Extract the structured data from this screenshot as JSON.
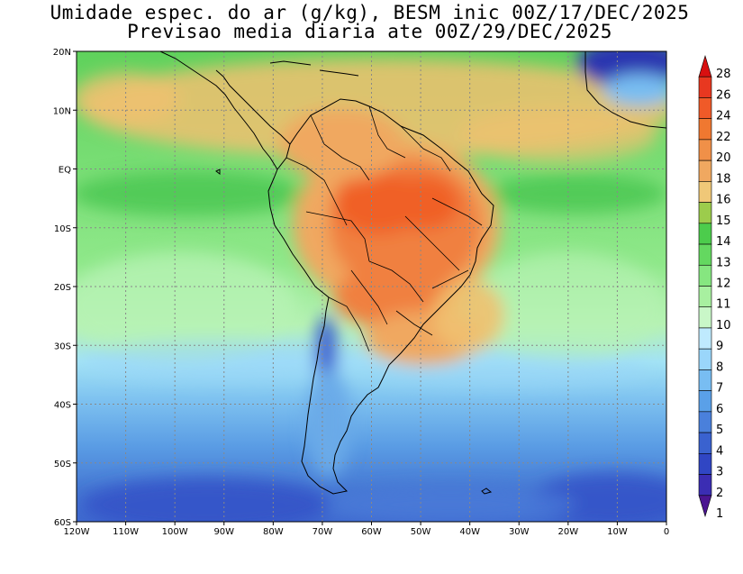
{
  "title_line1": "Umidade espec. do ar (g/kg), BESM inic 00Z/17/DEC/2025",
  "title_line2": "Previsao media diaria ate 00Z/29/DEC/2025",
  "axes": {
    "lon_labels": [
      "120W",
      "110W",
      "100W",
      "90W",
      "80W",
      "70W",
      "60W",
      "50W",
      "40W",
      "30W",
      "20W",
      "10W",
      "0"
    ],
    "lat_labels": [
      "20N",
      "10N",
      "EQ",
      "10S",
      "20S",
      "30S",
      "40S",
      "50S",
      "60S"
    ],
    "lon_range": [
      -120,
      0
    ],
    "lat_range": [
      -60,
      20
    ],
    "grid": "dotted"
  },
  "colorbar": {
    "levels": [
      "1",
      "2",
      "3",
      "4",
      "5",
      "6",
      "7",
      "8",
      "9",
      "10",
      "11",
      "12",
      "13",
      "14",
      "15",
      "16",
      "18",
      "20",
      "22",
      "24",
      "26",
      "28"
    ],
    "colors": [
      "#4b1591",
      "#3b2db3",
      "#3046c4",
      "#3a62cf",
      "#4a80db",
      "#5aa0e8",
      "#78bdf2",
      "#9ad6fa",
      "#bfeafe",
      "#c9f7c8",
      "#a8f0a0",
      "#86e680",
      "#64d860",
      "#4ccc4c",
      "#9ccc4c",
      "#f0c878",
      "#f0a860",
      "#f09048",
      "#f07830",
      "#f05a28",
      "#e83820",
      "#d81010"
    ]
  },
  "map": {
    "region": "South America",
    "variable": "specific humidity",
    "units": "g/kg"
  }
}
